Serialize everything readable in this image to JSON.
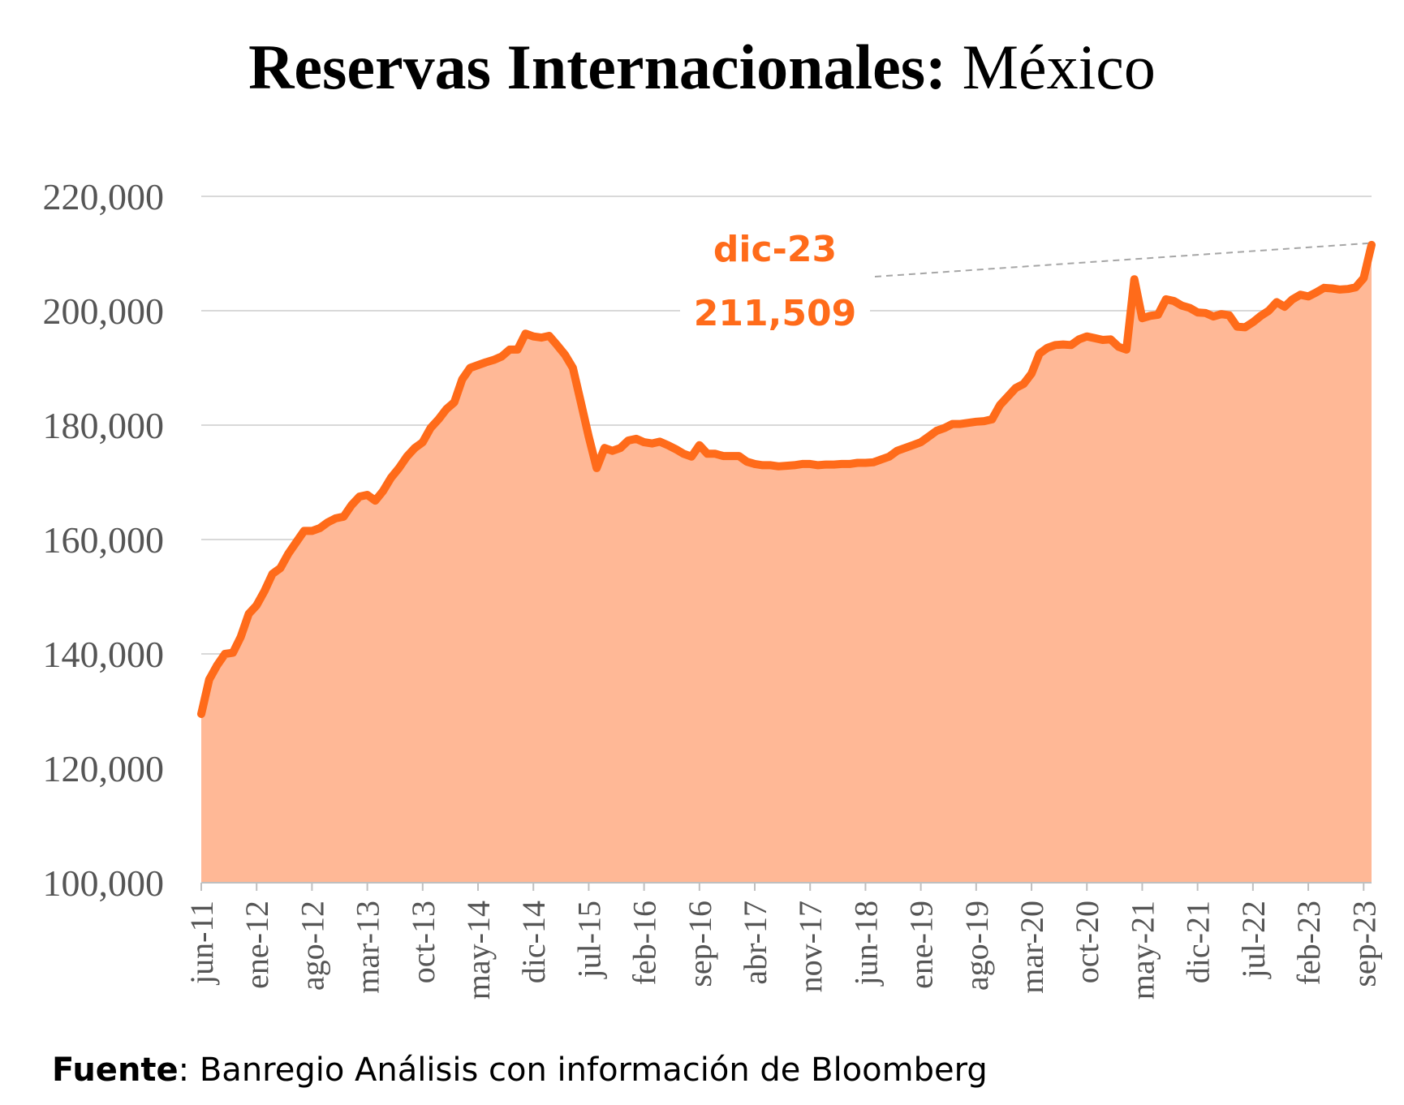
{
  "title": {
    "bold": "Reservas Internacionales:",
    "regular": " México"
  },
  "source": {
    "bold": "Fuente",
    "rest": ": Banregio Análisis con información de Bloomberg"
  },
  "colors": {
    "line": "#ff6b1a",
    "area": "#ffb896",
    "grid": "#d9d9d9",
    "tick_text": "#555555",
    "annotation_leader": "#a6a6a6"
  },
  "annotation": {
    "label": "dic-23",
    "value": "211,509"
  },
  "chart_data": {
    "type": "area",
    "title": "Reservas Internacionales: México",
    "xlabel": "",
    "ylabel": "",
    "ylim": [
      100000,
      220000
    ],
    "yticks": [
      "100,000",
      "120,000",
      "140,000",
      "160,000",
      "180,000",
      "200,000",
      "220,000"
    ],
    "xticks": [
      "jun-11",
      "ene-12",
      "ago-12",
      "mar-13",
      "oct-13",
      "may-14",
      "dic-14",
      "jul-15",
      "feb-16",
      "sep-16",
      "abr-17",
      "nov-17",
      "jun-18",
      "ene-19",
      "ago-19",
      "mar-20",
      "oct-20",
      "may-21",
      "dic-21",
      "jul-22",
      "feb-23",
      "sep-23"
    ],
    "grid": true,
    "legend": "none",
    "series": [
      {
        "values": [
          129500,
          135500,
          138000,
          140000,
          140200,
          143000,
          147000,
          148500,
          151000,
          154000,
          155000,
          157500,
          159500,
          161500,
          161500,
          162000,
          163000,
          163700,
          164000,
          166000,
          167500,
          167800,
          166800,
          168500,
          170800,
          172500,
          174500,
          176000,
          177000,
          179500,
          181000,
          182800,
          184000,
          188000,
          190000,
          190500,
          191000,
          191400,
          192000,
          193200,
          193200,
          196000,
          195500,
          195300,
          195600,
          194000,
          192300,
          190000,
          184000,
          178000,
          172500,
          176000,
          175500,
          176000,
          177300,
          177600,
          177000,
          176800,
          177100,
          176500,
          175800,
          175000,
          174500,
          176500,
          175000,
          175000,
          174600,
          174600,
          174600,
          173600,
          173200,
          173000,
          173000,
          172800,
          172900,
          173000,
          173200,
          173200,
          173000,
          173100,
          173100,
          173200,
          173200,
          173400,
          173400,
          173500,
          174000,
          174500,
          175500,
          176000,
          176500,
          177000,
          178000,
          179000,
          179500,
          180200,
          180200,
          180400,
          180600,
          180700,
          181000,
          183500,
          185000,
          186500,
          187200,
          189000,
          192500,
          193500,
          194000,
          194100,
          194000,
          195000,
          195500,
          195200,
          194900,
          195000,
          193700,
          193200,
          205500,
          198700,
          199100,
          199300,
          202000,
          201700,
          200900,
          200500,
          199700,
          199600,
          199000,
          199400,
          199200,
          197200,
          197100,
          198000,
          199100,
          200000,
          201500,
          200700,
          202000,
          202800,
          202500,
          203200,
          204000,
          203900,
          203700,
          203800,
          204100,
          205700,
          211509
        ]
      }
    ]
  }
}
